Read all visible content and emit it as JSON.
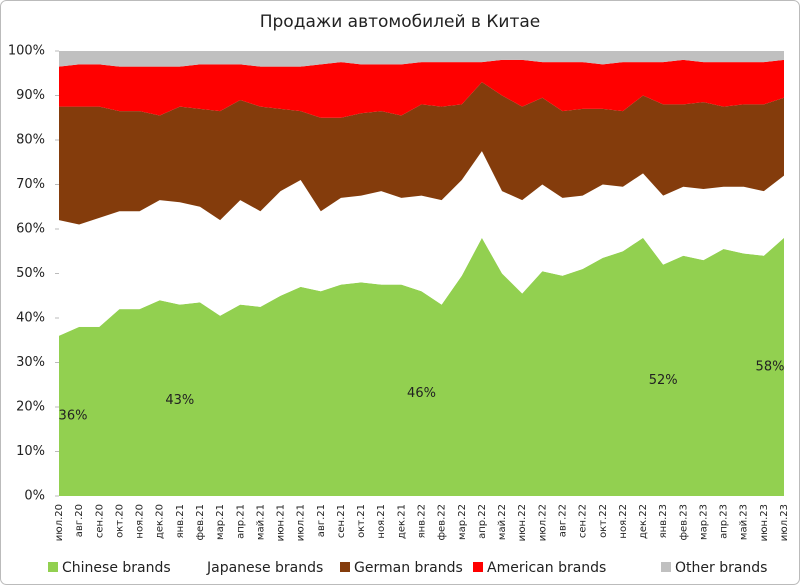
{
  "chart_data": {
    "type": "stacked_area",
    "title": "Продажи автомобилей в Китае",
    "categories": [
      "июл.20",
      "авг.20",
      "сен.20",
      "окт.20",
      "ноя.20",
      "дек.20",
      "янв.21",
      "фев.21",
      "мар.21",
      "апр.21",
      "май.21",
      "июн.21",
      "июл.21",
      "авг.21",
      "сен.21",
      "окт.21",
      "ноя.21",
      "дек.21",
      "янв.22",
      "фев.22",
      "мар.22",
      "апр.22",
      "май.22",
      "июн.22",
      "июл.22",
      "авг.22",
      "сен.22",
      "окт.22",
      "ноя.22",
      "дек.22",
      "янв.23",
      "фев.23",
      "мар.23",
      "апр.23",
      "май.23",
      "июн.23",
      "июл.23"
    ],
    "series": [
      {
        "name": "Chinese brands",
        "color": "#92d050",
        "values": [
          36,
          38,
          38,
          42,
          42,
          44,
          43,
          43.5,
          40.5,
          43,
          42.5,
          45,
          47,
          46,
          47.5,
          48,
          47.5,
          47.5,
          46,
          43,
          49.5,
          58,
          50,
          45.5,
          50.5,
          49.5,
          51,
          53.5,
          55,
          58,
          52,
          54,
          53,
          55.5,
          54.5,
          54,
          58
        ],
        "value_labels": [
          "36%",
          null,
          null,
          null,
          null,
          null,
          "43%",
          null,
          null,
          null,
          null,
          null,
          null,
          null,
          null,
          null,
          null,
          null,
          "46%",
          null,
          null,
          null,
          null,
          null,
          null,
          null,
          null,
          null,
          null,
          null,
          "52%",
          null,
          null,
          null,
          null,
          null,
          "58%"
        ]
      },
      {
        "name": "Japanese brands",
        "color": "#ffffff",
        "values": [
          26,
          23,
          24.5,
          22,
          22,
          22.5,
          23,
          21.5,
          21.5,
          23.5,
          21.5,
          23.5,
          24,
          18,
          19.5,
          19.5,
          21,
          19.5,
          21.5,
          23.5,
          21.5,
          19.5,
          18.5,
          21,
          19.5,
          17.5,
          16.5,
          16.5,
          14.5,
          14.5,
          15.5,
          15.5,
          16,
          14,
          15,
          14.5,
          14
        ]
      },
      {
        "name": "German brands",
        "color": "#843c0c",
        "values": [
          25.5,
          26.5,
          25,
          22.5,
          22.5,
          19,
          21.5,
          22,
          24.5,
          22.5,
          23.5,
          18.5,
          15.5,
          21,
          18,
          18.5,
          18,
          18.5,
          20.5,
          21,
          17,
          15.5,
          21.5,
          21,
          19.5,
          19.5,
          19.5,
          17,
          17,
          17.5,
          20.5,
          18.5,
          19.5,
          18,
          18.5,
          19.5,
          17.5
        ]
      },
      {
        "name": "American brands",
        "color": "#ff0000",
        "values": [
          9,
          9.5,
          9.5,
          10,
          10,
          11,
          9,
          10,
          10.5,
          8,
          9,
          9.5,
          10,
          12,
          12.5,
          11,
          10.5,
          11.5,
          9.5,
          10,
          9.5,
          4.5,
          8,
          10.5,
          8,
          11,
          10.5,
          10,
          11,
          7.5,
          9.5,
          10,
          9,
          10,
          9.5,
          9.5,
          8.5
        ]
      },
      {
        "name": "Other brands",
        "color": "#c0c0c0",
        "values": [
          3.5,
          3,
          3,
          3.5,
          3.5,
          3.5,
          3.5,
          3,
          3,
          3,
          3.5,
          3.5,
          3.5,
          3,
          2.5,
          3,
          3,
          3,
          2.5,
          2.5,
          2.5,
          2.5,
          2,
          2,
          2.5,
          2.5,
          2.5,
          3,
          2.5,
          2.5,
          2.5,
          2,
          2.5,
          2.5,
          2.5,
          2.5,
          2
        ]
      }
    ],
    "ylim": [
      0,
      100
    ],
    "yticks": [
      {
        "value": 0,
        "label": "0%"
      },
      {
        "value": 10,
        "label": "10%"
      },
      {
        "value": 20,
        "label": "20%"
      },
      {
        "value": 30,
        "label": "30%"
      },
      {
        "value": 40,
        "label": "40%"
      },
      {
        "value": 50,
        "label": "50%"
      },
      {
        "value": 60,
        "label": "60%"
      },
      {
        "value": 70,
        "label": "70%"
      },
      {
        "value": 80,
        "label": "80%"
      },
      {
        "value": 90,
        "label": "90%"
      },
      {
        "value": 100,
        "label": "100%"
      }
    ],
    "grid": false,
    "legend": "bottom"
  }
}
